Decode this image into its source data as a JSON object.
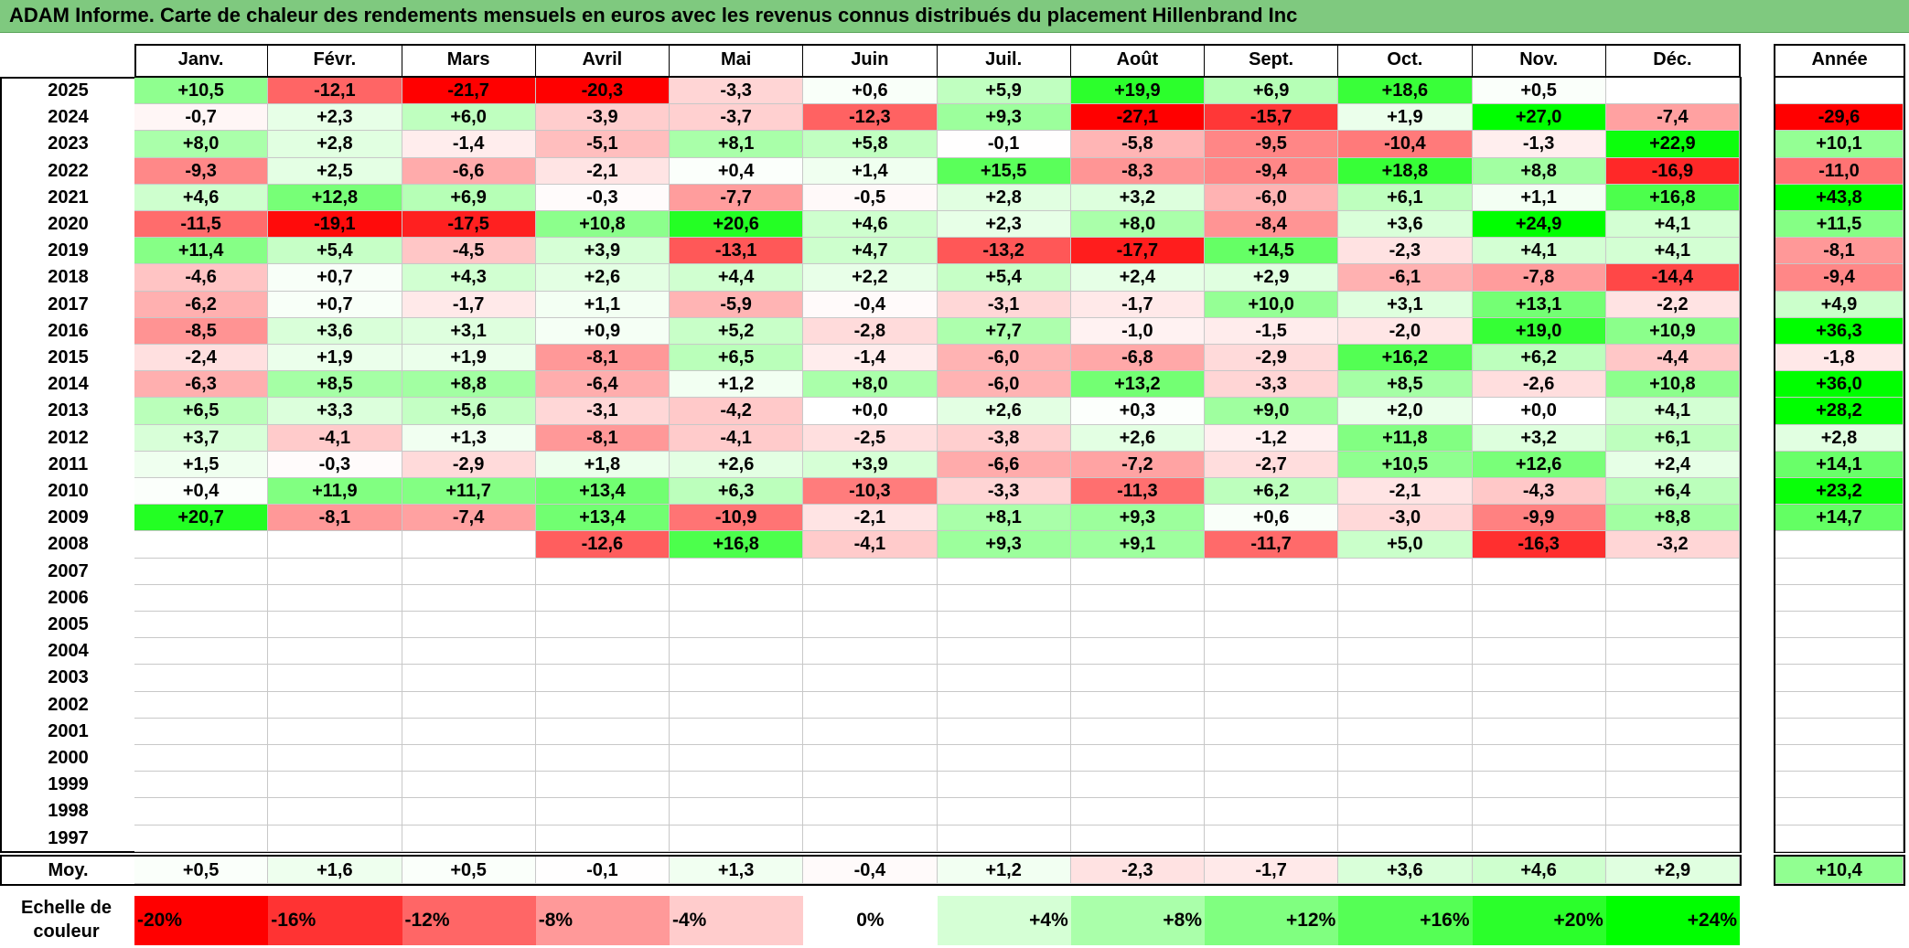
{
  "title": "ADAM Informe. Carte de chaleur des rendements mensuels en euros avec les revenus connus distribués du placement Hillenbrand Inc",
  "chart_data": {
    "type": "heatmap",
    "title": "ADAM Informe. Carte de chaleur des rendements mensuels en euros avec les revenus connus distribués du placement Hillenbrand Inc",
    "months": [
      "Janv.",
      "Févr.",
      "Mars",
      "Avril",
      "Mai",
      "Juin",
      "Juil.",
      "Août",
      "Sept.",
      "Oct.",
      "Nov.",
      "Déc."
    ],
    "year_header": "Année",
    "rows": [
      {
        "year": "2025",
        "values": [
          "+10,5",
          "-12,1",
          "-21,7",
          "-20,3",
          "-3,3",
          "+0,6",
          "+5,9",
          "+19,9",
          "+6,9",
          "+18,6",
          "+0,5",
          ""
        ],
        "annual": ""
      },
      {
        "year": "2024",
        "values": [
          "-0,7",
          "+2,3",
          "+6,0",
          "-3,9",
          "-3,7",
          "-12,3",
          "+9,3",
          "-27,1",
          "-15,7",
          "+1,9",
          "+27,0",
          "-7,4"
        ],
        "annual": "-29,6"
      },
      {
        "year": "2023",
        "values": [
          "+8,0",
          "+2,8",
          "-1,4",
          "-5,1",
          "+8,1",
          "+5,8",
          "-0,1",
          "-5,8",
          "-9,5",
          "-10,4",
          "-1,3",
          "+22,9"
        ],
        "annual": "+10,1"
      },
      {
        "year": "2022",
        "values": [
          "-9,3",
          "+2,5",
          "-6,6",
          "-2,1",
          "+0,4",
          "+1,4",
          "+15,5",
          "-8,3",
          "-9,4",
          "+18,8",
          "+8,8",
          "-16,9"
        ],
        "annual": "-11,0"
      },
      {
        "year": "2021",
        "values": [
          "+4,6",
          "+12,8",
          "+6,9",
          "-0,3",
          "-7,7",
          "-0,5",
          "+2,8",
          "+3,2",
          "-6,0",
          "+6,1",
          "+1,1",
          "+16,8"
        ],
        "annual": "+43,8"
      },
      {
        "year": "2020",
        "values": [
          "-11,5",
          "-19,1",
          "-17,5",
          "+10,8",
          "+20,6",
          "+4,6",
          "+2,3",
          "+8,0",
          "-8,4",
          "+3,6",
          "+24,9",
          "+4,1"
        ],
        "annual": "+11,5"
      },
      {
        "year": "2019",
        "values": [
          "+11,4",
          "+5,4",
          "-4,5",
          "+3,9",
          "-13,1",
          "+4,7",
          "-13,2",
          "-17,7",
          "+14,5",
          "-2,3",
          "+4,1",
          "+4,1"
        ],
        "annual": "-8,1"
      },
      {
        "year": "2018",
        "values": [
          "-4,6",
          "+0,7",
          "+4,3",
          "+2,6",
          "+4,4",
          "+2,2",
          "+5,4",
          "+2,4",
          "+2,9",
          "-6,1",
          "-7,8",
          "-14,4"
        ],
        "annual": "-9,4"
      },
      {
        "year": "2017",
        "values": [
          "-6,2",
          "+0,7",
          "-1,7",
          "+1,1",
          "-5,9",
          "-0,4",
          "-3,1",
          "-1,7",
          "+10,0",
          "+3,1",
          "+13,1",
          "-2,2"
        ],
        "annual": "+4,9"
      },
      {
        "year": "2016",
        "values": [
          "-8,5",
          "+3,6",
          "+3,1",
          "+0,9",
          "+5,2",
          "-2,8",
          "+7,7",
          "-1,0",
          "-1,5",
          "-2,0",
          "+19,0",
          "+10,9"
        ],
        "annual": "+36,3"
      },
      {
        "year": "2015",
        "values": [
          "-2,4",
          "+1,9",
          "+1,9",
          "-8,1",
          "+6,5",
          "-1,4",
          "-6,0",
          "-6,8",
          "-2,9",
          "+16,2",
          "+6,2",
          "-4,4"
        ],
        "annual": "-1,8"
      },
      {
        "year": "2014",
        "values": [
          "-6,3",
          "+8,5",
          "+8,8",
          "-6,4",
          "+1,2",
          "+8,0",
          "-6,0",
          "+13,2",
          "-3,3",
          "+8,5",
          "-2,6",
          "+10,8"
        ],
        "annual": "+36,0"
      },
      {
        "year": "2013",
        "values": [
          "+6,5",
          "+3,3",
          "+5,6",
          "-3,1",
          "-4,2",
          "+0,0",
          "+2,6",
          "+0,3",
          "+9,0",
          "+2,0",
          "+0,0",
          "+4,1"
        ],
        "annual": "+28,2"
      },
      {
        "year": "2012",
        "values": [
          "+3,7",
          "-4,1",
          "+1,3",
          "-8,1",
          "-4,1",
          "-2,5",
          "-3,8",
          "+2,6",
          "-1,2",
          "+11,8",
          "+3,2",
          "+6,1"
        ],
        "annual": "+2,8"
      },
      {
        "year": "2011",
        "values": [
          "+1,5",
          "-0,3",
          "-2,9",
          "+1,8",
          "+2,6",
          "+3,9",
          "-6,6",
          "-7,2",
          "-2,7",
          "+10,5",
          "+12,6",
          "+2,4"
        ],
        "annual": "+14,1"
      },
      {
        "year": "2010",
        "values": [
          "+0,4",
          "+11,9",
          "+11,7",
          "+13,4",
          "+6,3",
          "-10,3",
          "-3,3",
          "-11,3",
          "+6,2",
          "-2,1",
          "-4,3",
          "+6,4"
        ],
        "annual": "+23,2"
      },
      {
        "year": "2009",
        "values": [
          "+20,7",
          "-8,1",
          "-7,4",
          "+13,4",
          "-10,9",
          "-2,1",
          "+8,1",
          "+9,3",
          "+0,6",
          "-3,0",
          "-9,9",
          "+8,8"
        ],
        "annual": "+14,7"
      },
      {
        "year": "2008",
        "values": [
          "",
          "",
          "",
          "-12,6",
          "+16,8",
          "-4,1",
          "+9,3",
          "+9,1",
          "-11,7",
          "+5,0",
          "-16,3",
          "-3,2"
        ],
        "annual": ""
      },
      {
        "year": "2007",
        "values": [
          "",
          "",
          "",
          "",
          "",
          "",
          "",
          "",
          "",
          "",
          "",
          ""
        ],
        "annual": ""
      },
      {
        "year": "2006",
        "values": [
          "",
          "",
          "",
          "",
          "",
          "",
          "",
          "",
          "",
          "",
          "",
          ""
        ],
        "annual": ""
      },
      {
        "year": "2005",
        "values": [
          "",
          "",
          "",
          "",
          "",
          "",
          "",
          "",
          "",
          "",
          "",
          ""
        ],
        "annual": ""
      },
      {
        "year": "2004",
        "values": [
          "",
          "",
          "",
          "",
          "",
          "",
          "",
          "",
          "",
          "",
          "",
          ""
        ],
        "annual": ""
      },
      {
        "year": "2003",
        "values": [
          "",
          "",
          "",
          "",
          "",
          "",
          "",
          "",
          "",
          "",
          "",
          ""
        ],
        "annual": ""
      },
      {
        "year": "2002",
        "values": [
          "",
          "",
          "",
          "",
          "",
          "",
          "",
          "",
          "",
          "",
          "",
          ""
        ],
        "annual": ""
      },
      {
        "year": "2001",
        "values": [
          "",
          "",
          "",
          "",
          "",
          "",
          "",
          "",
          "",
          "",
          "",
          ""
        ],
        "annual": ""
      },
      {
        "year": "2000",
        "values": [
          "",
          "",
          "",
          "",
          "",
          "",
          "",
          "",
          "",
          "",
          "",
          ""
        ],
        "annual": ""
      },
      {
        "year": "1999",
        "values": [
          "",
          "",
          "",
          "",
          "",
          "",
          "",
          "",
          "",
          "",
          "",
          ""
        ],
        "annual": ""
      },
      {
        "year": "1998",
        "values": [
          "",
          "",
          "",
          "",
          "",
          "",
          "",
          "",
          "",
          "",
          "",
          ""
        ],
        "annual": ""
      },
      {
        "year": "1997",
        "values": [
          "",
          "",
          "",
          "",
          "",
          "",
          "",
          "",
          "",
          "",
          "",
          ""
        ],
        "annual": ""
      }
    ],
    "average": {
      "label": "Moy.",
      "values": [
        "+0,5",
        "+1,6",
        "+0,5",
        "-0,1",
        "+1,3",
        "-0,4",
        "+1,2",
        "-2,3",
        "-1,7",
        "+3,6",
        "+4,6",
        "+2,9"
      ],
      "annual": "+10,4"
    },
    "color_scale": {
      "label": "Echelle de couleur",
      "stops": [
        "-20%",
        "-16%",
        "-12%",
        "-8%",
        "-4%",
        "0%",
        "+4%",
        "+8%",
        "+12%",
        "+16%",
        "+20%",
        "+24%"
      ],
      "negative_color": "#ff0000",
      "neutral_color": "#ffffff",
      "positive_color": "#00ff00"
    }
  }
}
